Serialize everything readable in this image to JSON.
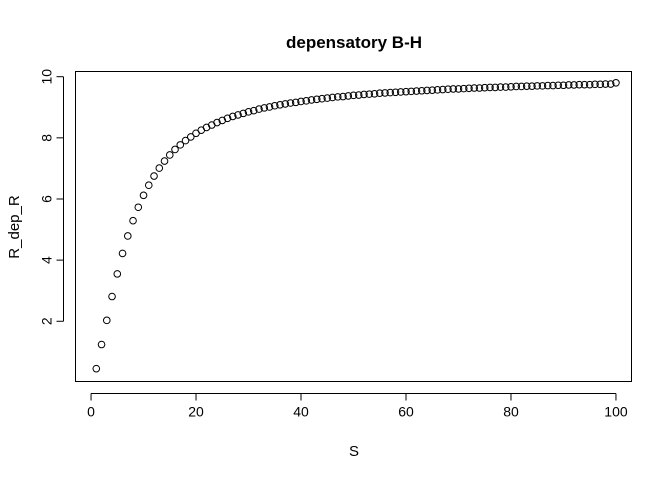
{
  "chart_data": {
    "type": "scatter",
    "title": "depensatory B-H",
    "xlabel": "S",
    "ylabel": "R_dep_R",
    "xlim": [
      -2.96,
      102.96
    ],
    "ylim": [
      0.03,
      10.17
    ],
    "x_ticks": [
      0,
      20,
      40,
      60,
      80,
      100
    ],
    "y_ticks": [
      2,
      4,
      6,
      8,
      10
    ],
    "grid": false,
    "legend": "none",
    "marker": "open-circle",
    "series": [
      {
        "x": [
          1,
          2,
          3,
          4,
          5,
          6,
          7,
          8,
          9,
          10,
          11,
          12,
          13,
          14,
          15,
          16,
          17,
          18,
          19,
          20,
          21,
          22,
          23,
          24,
          25,
          26,
          27,
          28,
          29,
          30,
          31,
          32,
          33,
          34,
          35,
          36,
          37,
          38,
          39,
          40,
          41,
          42,
          43,
          44,
          45,
          46,
          47,
          48,
          49,
          50,
          51,
          52,
          53,
          54,
          55,
          56,
          57,
          58,
          59,
          60,
          61,
          62,
          63,
          64,
          65,
          66,
          67,
          68,
          69,
          70,
          71,
          72,
          73,
          74,
          75,
          76,
          77,
          78,
          79,
          80,
          81,
          82,
          83,
          84,
          85,
          86,
          87,
          88,
          89,
          90,
          91,
          92,
          93,
          94,
          95,
          96,
          97,
          98,
          99,
          100
        ],
        "y": [
          0.45,
          1.24,
          2.03,
          2.81,
          3.55,
          4.22,
          4.79,
          5.29,
          5.73,
          6.12,
          6.45,
          6.75,
          7.01,
          7.24,
          7.44,
          7.62,
          7.77,
          7.91,
          8.03,
          8.15,
          8.25,
          8.34,
          8.42,
          8.5,
          8.57,
          8.64,
          8.7,
          8.75,
          8.8,
          8.85,
          8.89,
          8.94,
          8.98,
          9.01,
          9.05,
          9.08,
          9.11,
          9.14,
          9.16,
          9.19,
          9.21,
          9.24,
          9.26,
          9.28,
          9.3,
          9.32,
          9.34,
          9.35,
          9.37,
          9.39,
          9.4,
          9.42,
          9.43,
          9.44,
          9.46,
          9.47,
          9.48,
          9.49,
          9.5,
          9.51,
          9.52,
          9.53,
          9.54,
          9.55,
          9.56,
          9.57,
          9.58,
          9.59,
          9.6,
          9.6,
          9.61,
          9.62,
          9.63,
          9.63,
          9.64,
          9.65,
          9.65,
          9.66,
          9.66,
          9.67,
          9.68,
          9.68,
          9.69,
          9.69,
          9.7,
          9.7,
          9.71,
          9.71,
          9.72,
          9.72,
          9.73,
          9.73,
          9.74,
          9.74,
          9.74,
          9.75,
          9.75,
          9.76,
          9.76,
          9.8
        ]
      }
    ]
  }
}
